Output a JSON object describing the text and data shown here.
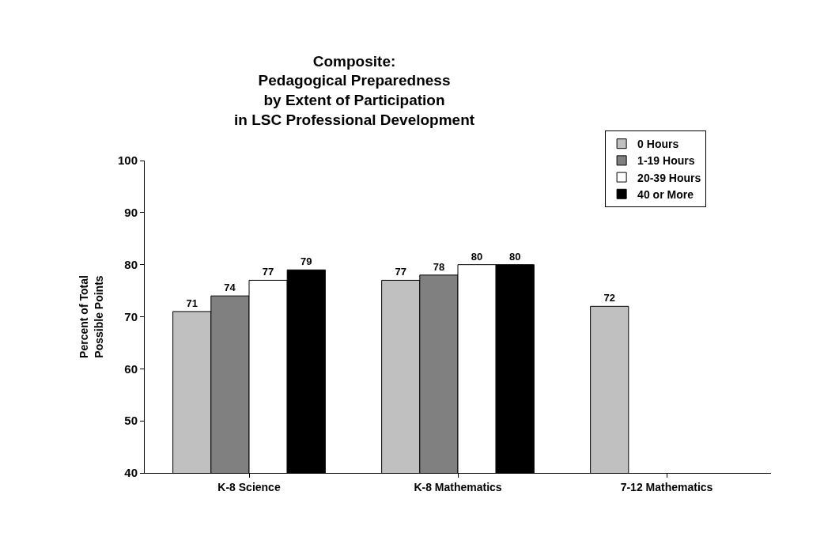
{
  "chart_data": {
    "type": "bar",
    "title": "Composite:\nPedagogical Preparedness\nby Extent of Participation\nin LSC Professional Development",
    "ylabel": "Percent of Total\nPossible Points",
    "categories": [
      "K-8 Science",
      "K-8 Mathematics",
      "7-12 Mathematics"
    ],
    "series": [
      {
        "name": "0 Hours",
        "color": "#c0c0c0",
        "values": [
          71,
          77,
          72
        ]
      },
      {
        "name": "1-19 Hours",
        "color": "#808080",
        "values": [
          74,
          78,
          null
        ]
      },
      {
        "name": "20-39 Hours",
        "color": "#ffffff",
        "values": [
          77,
          80,
          null
        ]
      },
      {
        "name": "40 or More",
        "color": "#000000",
        "values": [
          79,
          80,
          null
        ]
      }
    ],
    "ylim": [
      40,
      100
    ],
    "yticks": [
      40,
      50,
      60,
      70,
      80,
      90,
      100
    ],
    "data_labels": true,
    "legend": "top right"
  }
}
